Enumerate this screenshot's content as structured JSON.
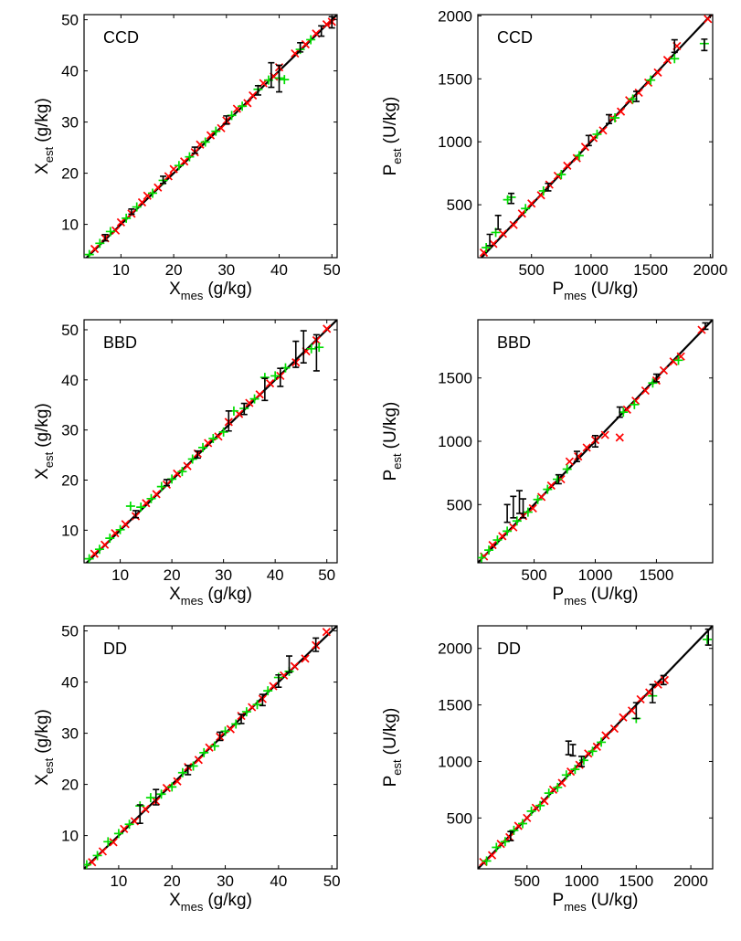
{
  "colors": {
    "fit_line": "#000000",
    "series_a": "#ff0000",
    "series_b": "#00dd00",
    "series_c": "#000000",
    "frame": "#000000"
  },
  "chart_data": [
    {
      "type": "scatter",
      "panel_label": "CCD",
      "xlabel": {
        "main": "X",
        "sub": "mes",
        "unit": "(g/kg)"
      },
      "ylabel": {
        "main": "X",
        "sub": "est",
        "unit": "(g/kg)"
      },
      "xlim": [
        3,
        51
      ],
      "ylim": [
        3.5,
        51
      ],
      "xticks": [
        "10",
        "20",
        "30",
        "40",
        "50"
      ],
      "xtick_values": [
        10,
        20,
        30,
        40,
        50
      ],
      "yticks": [
        "10",
        "20",
        "30",
        "40",
        "50"
      ],
      "ytick_values": [
        10,
        20,
        30,
        40,
        50
      ],
      "fit_line": [
        [
          3,
          3
        ],
        [
          51,
          51
        ]
      ],
      "series": [
        {
          "marker": "x",
          "color": "#ff0000",
          "x": [
            5,
            7,
            9,
            10,
            12,
            14,
            15,
            17,
            19,
            20,
            22,
            24,
            25,
            27,
            29,
            30,
            32,
            34,
            35,
            37,
            39,
            40,
            43,
            45,
            47,
            49,
            50
          ],
          "y": [
            5.2,
            7.3,
            8.8,
            10.4,
            12.1,
            14.3,
            15.6,
            17.2,
            19.4,
            20.8,
            22.3,
            24.1,
            25.6,
            27.4,
            28.8,
            30.3,
            32.6,
            33.7,
            35.2,
            37.6,
            38.9,
            40.7,
            43.4,
            45.2,
            47.3,
            49.1,
            49.6
          ]
        },
        {
          "marker": "+",
          "color": "#00dd00",
          "x": [
            4,
            6,
            8,
            11,
            13,
            16,
            18,
            21,
            23,
            26,
            28,
            31,
            33,
            36,
            38,
            40,
            41,
            44,
            46
          ],
          "y": [
            4.1,
            6.3,
            8.6,
            11.2,
            13.4,
            16.1,
            18.6,
            21.5,
            23.2,
            26.1,
            28.2,
            31.3,
            33.1,
            36.4,
            38.2,
            38.6,
            38.3,
            44.2,
            46.1
          ]
        },
        {
          "marker": "errorbar",
          "color": "#000000",
          "x": [
            7,
            12,
            18,
            24,
            30,
            36,
            38.5,
            40,
            44,
            48,
            50
          ],
          "y": [
            7.4,
            12.5,
            18.7,
            24.5,
            30.4,
            36.2,
            39.2,
            38.5,
            44.6,
            47.8,
            49.5
          ],
          "err": [
            0.6,
            0.5,
            0.7,
            0.6,
            0.8,
            0.9,
            2.4,
            2.6,
            0.9,
            1.0,
            1.1
          ]
        }
      ]
    },
    {
      "type": "scatter",
      "panel_label": "CCD",
      "xlabel": {
        "main": "P",
        "sub": "mes",
        "unit": "(U/kg)"
      },
      "ylabel": {
        "main": "P",
        "sub": "est",
        "unit": "(U/kg)"
      },
      "xlim": [
        50,
        2020
      ],
      "ylim": [
        80,
        2010
      ],
      "xticks": [
        "500",
        "1000",
        "1500",
        "2000"
      ],
      "xtick_values": [
        500,
        1000,
        1500,
        2000
      ],
      "yticks": [
        "500",
        "1000",
        "1500",
        "2000"
      ],
      "ytick_values": [
        500,
        1000,
        1500,
        2000
      ],
      "fit_line": [
        [
          50,
          50
        ],
        [
          2020,
          2020
        ]
      ],
      "series": [
        {
          "marker": "x",
          "color": "#ff0000",
          "x": [
            100,
            180,
            260,
            350,
            420,
            500,
            580,
            650,
            720,
            800,
            880,
            950,
            1020,
            1100,
            1180,
            1250,
            1320,
            1400,
            1480,
            1560,
            1640,
            1720,
            1980
          ],
          "y": [
            120,
            190,
            270,
            340,
            430,
            510,
            575,
            660,
            730,
            810,
            870,
            960,
            1030,
            1090,
            1190,
            1240,
            1330,
            1390,
            1470,
            1550,
            1650,
            1760,
            1975
          ]
        },
        {
          "marker": "+",
          "color": "#00dd00",
          "x": [
            120,
            200,
            300,
            330,
            450,
            600,
            750,
            900,
            1050,
            1200,
            1350,
            1500,
            1700,
            1950
          ],
          "y": [
            160,
            280,
            540,
            560,
            470,
            610,
            740,
            890,
            1060,
            1190,
            1340,
            1490,
            1660,
            1780
          ]
        },
        {
          "marker": "errorbar",
          "color": "#000000",
          "x": [
            150,
            220,
            330,
            640,
            980,
            1150,
            1380,
            1700,
            1950
          ],
          "y": [
            220,
            360,
            550,
            640,
            1010,
            1180,
            1360,
            1760,
            1770
          ],
          "err": [
            45,
            55,
            40,
            30,
            40,
            35,
            40,
            50,
            45
          ]
        }
      ]
    },
    {
      "type": "scatter",
      "panel_label": "BBD",
      "xlabel": {
        "main": "X",
        "sub": "mes",
        "unit": "(g/kg)"
      },
      "ylabel": {
        "main": "X",
        "sub": "est",
        "unit": "(g/kg)"
      },
      "xlim": [
        3,
        52
      ],
      "ylim": [
        3.5,
        52
      ],
      "xticks": [
        "10",
        "20",
        "30",
        "40",
        "50"
      ],
      "xtick_values": [
        10,
        20,
        30,
        40,
        50
      ],
      "yticks": [
        "10",
        "20",
        "30",
        "40",
        "50"
      ],
      "ytick_values": [
        10,
        20,
        30,
        40,
        50
      ],
      "fit_line": [
        [
          3,
          3
        ],
        [
          52,
          52
        ]
      ],
      "series": [
        {
          "marker": "x",
          "color": "#ff0000",
          "x": [
            5,
            7,
            9,
            11,
            13,
            15,
            17,
            19,
            21,
            23,
            25,
            27,
            29,
            31,
            33,
            35,
            37,
            39,
            41,
            44,
            46,
            48,
            50
          ],
          "y": [
            5.3,
            7.1,
            9.4,
            11.2,
            12.8,
            15.4,
            17.2,
            19.1,
            21.3,
            22.8,
            25.3,
            27.4,
            28.7,
            31.6,
            33.2,
            35.4,
            37.1,
            39.3,
            40.8,
            43.5,
            45.7,
            47.9,
            50.2
          ]
        },
        {
          "marker": "+",
          "color": "#00dd00",
          "x": [
            4,
            6,
            8,
            10,
            12,
            14,
            16,
            18,
            20,
            22,
            24,
            26,
            28,
            30,
            32,
            34,
            36,
            38,
            40,
            42,
            47,
            48.5
          ],
          "y": [
            4.3,
            6.2,
            8.4,
            10.1,
            14.8,
            14.6,
            16.3,
            18.7,
            20.2,
            21.7,
            24.2,
            26.5,
            28.3,
            29.6,
            33.8,
            34.3,
            36.2,
            40.5,
            40.8,
            42.4,
            46.2,
            46.5
          ]
        },
        {
          "marker": "errorbar",
          "color": "#000000",
          "x": [
            13,
            19,
            25,
            31,
            34,
            38,
            41,
            44,
            45.5,
            48
          ],
          "y": [
            13.2,
            19.5,
            25.1,
            31.8,
            34.2,
            38.1,
            40.5,
            45.1,
            46.6,
            45.4
          ],
          "err": [
            0.7,
            0.6,
            0.7,
            2.0,
            1.1,
            2.2,
            1.8,
            2.6,
            3.2,
            3.6
          ]
        }
      ]
    },
    {
      "type": "scatter",
      "panel_label": "BBD",
      "xlabel": {
        "main": "P",
        "sub": "mes",
        "unit": "(U/kg)"
      },
      "ylabel": {
        "main": "P",
        "sub": "est",
        "unit": "(U/kg)"
      },
      "xlim": [
        40,
        1960
      ],
      "ylim": [
        40,
        1960
      ],
      "xticks": [
        "500",
        "1000",
        "1500"
      ],
      "xtick_values": [
        500,
        1000,
        1500
      ],
      "yticks": [
        "500",
        "1000",
        "1500"
      ],
      "ytick_values": [
        500,
        1000,
        1500
      ],
      "fit_line": [
        [
          40,
          40
        ],
        [
          1960,
          1960
        ]
      ],
      "series": [
        {
          "marker": "x",
          "color": "#ff0000",
          "x": [
            90,
            160,
            240,
            330,
            410,
            490,
            560,
            640,
            720,
            790,
            860,
            930,
            1000,
            1080,
            1200,
            1260,
            1330,
            1410,
            1500,
            1560,
            1640,
            1700,
            1870
          ],
          "y": [
            90,
            180,
            250,
            320,
            410,
            470,
            560,
            650,
            700,
            840,
            880,
            950,
            1010,
            1050,
            1030,
            1250,
            1320,
            1400,
            1480,
            1560,
            1630,
            1670,
            1880
          ]
        },
        {
          "marker": "+",
          "color": "#00dd00",
          "x": [
            70,
            130,
            200,
            280,
            360,
            450,
            530,
            610,
            690,
            770,
            1230,
            1320,
            1470,
            1680
          ],
          "y": [
            80,
            140,
            220,
            290,
            370,
            440,
            540,
            620,
            700,
            780,
            1230,
            1290,
            1460,
            1640
          ]
        },
        {
          "marker": "errorbar",
          "color": "#000000",
          "x": [
            280,
            330,
            380,
            410,
            700,
            850,
            1000,
            1200,
            1500,
            1900
          ],
          "y": [
            430,
            480,
            520,
            470,
            700,
            880,
            1000,
            1230,
            1500,
            1910
          ],
          "err": [
            70,
            85,
            90,
            75,
            35,
            40,
            45,
            40,
            30,
            25
          ]
        }
      ]
    },
    {
      "type": "scatter",
      "panel_label": "DD",
      "xlabel": {
        "main": "X",
        "sub": "mes",
        "unit": "(g/kg)"
      },
      "ylabel": {
        "main": "X",
        "sub": "est",
        "unit": "(g/kg)"
      },
      "xlim": [
        3.5,
        51
      ],
      "ylim": [
        3.5,
        51
      ],
      "xticks": [
        "10",
        "20",
        "30",
        "40",
        "50"
      ],
      "xtick_values": [
        10,
        20,
        30,
        40,
        50
      ],
      "yticks": [
        "10",
        "20",
        "30",
        "40",
        "50"
      ],
      "ytick_values": [
        10,
        20,
        30,
        40,
        50
      ],
      "fit_line": [
        [
          3.5,
          3.5
        ],
        [
          51,
          51
        ]
      ],
      "series": [
        {
          "marker": "x",
          "color": "#ff0000",
          "x": [
            5,
            7,
            9,
            11,
            13,
            15,
            17,
            19,
            21,
            23,
            25,
            27,
            29,
            31,
            33,
            35,
            37,
            39,
            41,
            43,
            45,
            47,
            49
          ],
          "y": [
            4.8,
            6.9,
            8.7,
            11.3,
            12.8,
            15.2,
            16.7,
            19.3,
            20.6,
            23.4,
            24.8,
            27.2,
            29.3,
            30.8,
            33.4,
            35.1,
            36.7,
            39.2,
            41.3,
            43.1,
            44.6,
            47.2,
            49.8
          ]
        },
        {
          "marker": "+",
          "color": "#00dd00",
          "x": [
            4,
            6,
            8,
            10,
            12,
            14,
            16,
            18,
            20,
            22,
            24,
            26,
            28,
            30,
            32,
            34,
            36,
            38,
            40,
            42
          ],
          "y": [
            4.3,
            6.1,
            8.8,
            10.4,
            12.2,
            15.8,
            17.4,
            18.1,
            19.5,
            22.3,
            23.6,
            26.2,
            27.5,
            30.4,
            31.8,
            34.2,
            35.6,
            38.3,
            40.9,
            42.1
          ]
        },
        {
          "marker": "errorbar",
          "color": "#000000",
          "x": [
            14,
            17,
            23,
            29,
            33,
            37,
            40,
            42,
            47
          ],
          "y": [
            14.2,
            17.5,
            22.8,
            29.4,
            32.8,
            36.5,
            40.2,
            43.5,
            47.3
          ],
          "err": [
            1.8,
            1.5,
            0.9,
            0.8,
            0.9,
            1.1,
            1.2,
            1.6,
            1.3
          ]
        }
      ]
    },
    {
      "type": "scatter",
      "panel_label": "DD",
      "xlabel": {
        "main": "P",
        "sub": "mes",
        "unit": "(U/kg)"
      },
      "ylabel": {
        "main": "P",
        "sub": "est",
        "unit": "(U/kg)"
      },
      "xlim": [
        50,
        2200
      ],
      "ylim": [
        50,
        2200
      ],
      "xticks": [
        "500",
        "1000",
        "1500",
        "2000"
      ],
      "xtick_values": [
        500,
        1000,
        1500,
        2000
      ],
      "yticks": [
        "500",
        "1000",
        "1500",
        "2000"
      ],
      "ytick_values": [
        500,
        1000,
        1500,
        2000
      ],
      "fit_line": [
        [
          50,
          50
        ],
        [
          2200,
          2200
        ]
      ],
      "series": [
        {
          "marker": "x",
          "color": "#ff0000",
          "x": [
            100,
            180,
            260,
            340,
            420,
            500,
            580,
            660,
            740,
            820,
            900,
            980,
            1060,
            1140,
            1220,
            1300,
            1380,
            1460,
            1540,
            1620,
            1700,
            1760
          ],
          "y": [
            110,
            170,
            270,
            330,
            430,
            500,
            590,
            650,
            750,
            810,
            910,
            970,
            1070,
            1130,
            1230,
            1290,
            1390,
            1450,
            1550,
            1610,
            1680,
            1720
          ]
        },
        {
          "marker": "+",
          "color": "#00dd00",
          "x": [
            130,
            220,
            300,
            380,
            460,
            540,
            620,
            700,
            780,
            860,
            940,
            1020,
            1100,
            1180,
            1500,
            1650,
            2150
          ],
          "y": [
            120,
            240,
            290,
            390,
            450,
            560,
            610,
            720,
            770,
            880,
            930,
            1010,
            1090,
            1170,
            1380,
            1580,
            2080
          ]
        },
        {
          "marker": "errorbar",
          "color": "#000000",
          "x": [
            350,
            880,
            920,
            1000,
            1500,
            1650,
            1750,
            2160
          ],
          "y": [
            340,
            1120,
            1100,
            1000,
            1450,
            1600,
            1720,
            2100
          ],
          "err": [
            40,
            60,
            50,
            45,
            70,
            80,
            40,
            70
          ]
        }
      ]
    }
  ]
}
